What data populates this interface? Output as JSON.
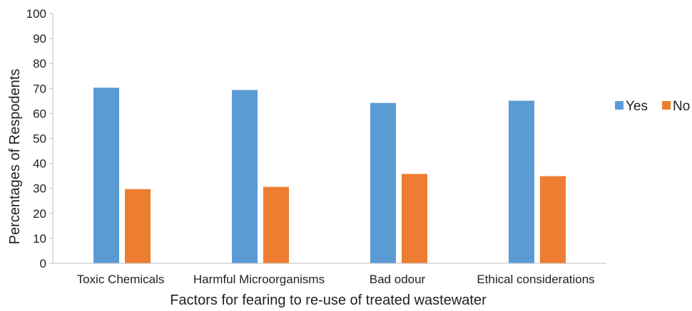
{
  "chart_data": {
    "type": "bar",
    "title": "",
    "xlabel": "Factors for fearing to re-use of treated wastewater",
    "ylabel": "Percentages of Respodents",
    "ylim": [
      0,
      100
    ],
    "yticks": [
      "0",
      "10",
      "20",
      "30",
      "40",
      "50",
      "60",
      "70",
      "80",
      "90",
      "100"
    ],
    "categories": [
      "Toxic Chemicals",
      "Harmful Microorganisms",
      "Bad odour",
      "Ethical considerations"
    ],
    "series": [
      {
        "name": "Yes",
        "color": "#5b9bd5",
        "values": [
          70.3,
          69.4,
          64.2,
          65.1
        ]
      },
      {
        "name": "No",
        "color": "#ed7d31",
        "values": [
          29.7,
          30.6,
          35.8,
          34.9
        ]
      }
    ],
    "legend": "right",
    "grid": false
  }
}
